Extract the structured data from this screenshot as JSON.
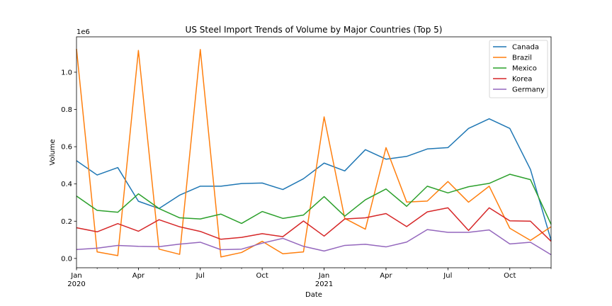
{
  "chart_data": {
    "type": "line",
    "title": "US Steel Import Trends of Volume by Major Countries (Top 5)",
    "xlabel": "Date",
    "ylabel": "Volume",
    "y_offset_label": "1e6",
    "ylim": [
      -50000,
      1190000
    ],
    "y_ticks": [
      0,
      200000,
      400000,
      600000,
      800000,
      1000000
    ],
    "y_tick_labels": [
      "0.0",
      "0.2",
      "0.4",
      "0.6",
      "0.8",
      "1.0"
    ],
    "x": [
      "2020-01",
      "2020-02",
      "2020-03",
      "2020-04",
      "2020-05",
      "2020-06",
      "2020-07",
      "2020-08",
      "2020-09",
      "2020-10",
      "2020-11",
      "2020-12",
      "2021-01",
      "2021-02",
      "2021-03",
      "2021-04",
      "2021-05",
      "2021-06",
      "2021-07",
      "2021-08",
      "2021-09",
      "2021-10",
      "2021-11",
      "2021-12"
    ],
    "x_ticks": [
      {
        "date": "2020-01",
        "label": "Jan",
        "sublabel": "2020"
      },
      {
        "date": "2020-04",
        "label": "Apr",
        "sublabel": ""
      },
      {
        "date": "2020-07",
        "label": "Jul",
        "sublabel": ""
      },
      {
        "date": "2020-10",
        "label": "Oct",
        "sublabel": ""
      },
      {
        "date": "2021-01",
        "label": "Jan",
        "sublabel": "2021"
      },
      {
        "date": "2021-04",
        "label": "Apr",
        "sublabel": ""
      },
      {
        "date": "2021-07",
        "label": "Jul",
        "sublabel": ""
      },
      {
        "date": "2021-10",
        "label": "Oct",
        "sublabel": ""
      }
    ],
    "legend_position": "top-right",
    "grid": false,
    "series": [
      {
        "name": "Canada",
        "color": "#1f77b4",
        "values": [
          525000,
          448000,
          488000,
          307000,
          268000,
          340000,
          388000,
          388000,
          402000,
          405000,
          370000,
          428000,
          512000,
          470000,
          584000,
          533000,
          548000,
          588000,
          595000,
          698000,
          750000,
          698000,
          478000,
          97000
        ]
      },
      {
        "name": "Brazil",
        "color": "#ff7f0e",
        "values": [
          1125000,
          35000,
          15000,
          1117000,
          50000,
          22000,
          1122000,
          8000,
          32000,
          92000,
          25000,
          35000,
          760000,
          215000,
          157000,
          595000,
          303000,
          308000,
          413000,
          302000,
          388000,
          162000,
          97000,
          170000
        ]
      },
      {
        "name": "Mexico",
        "color": "#2ca02c",
        "values": [
          335000,
          258000,
          248000,
          347000,
          268000,
          218000,
          212000,
          238000,
          188000,
          252000,
          215000,
          233000,
          332000,
          227000,
          315000,
          373000,
          280000,
          388000,
          352000,
          385000,
          403000,
          452000,
          423000,
          183000
        ]
      },
      {
        "name": "Korea",
        "color": "#d62728",
        "values": [
          165000,
          143000,
          187000,
          146000,
          208000,
          170000,
          145000,
          103000,
          113000,
          133000,
          117000,
          201000,
          120000,
          212000,
          218000,
          241000,
          171000,
          250000,
          272000,
          150000,
          272000,
          202000,
          200000,
          92000
        ]
      },
      {
        "name": "Germany",
        "color": "#9467bd",
        "values": [
          48000,
          55000,
          70000,
          65000,
          63000,
          77000,
          87000,
          47000,
          50000,
          82000,
          108000,
          65000,
          40000,
          70000,
          76000,
          62000,
          88000,
          155000,
          140000,
          140000,
          153000,
          78000,
          87000,
          20000
        ]
      }
    ]
  }
}
